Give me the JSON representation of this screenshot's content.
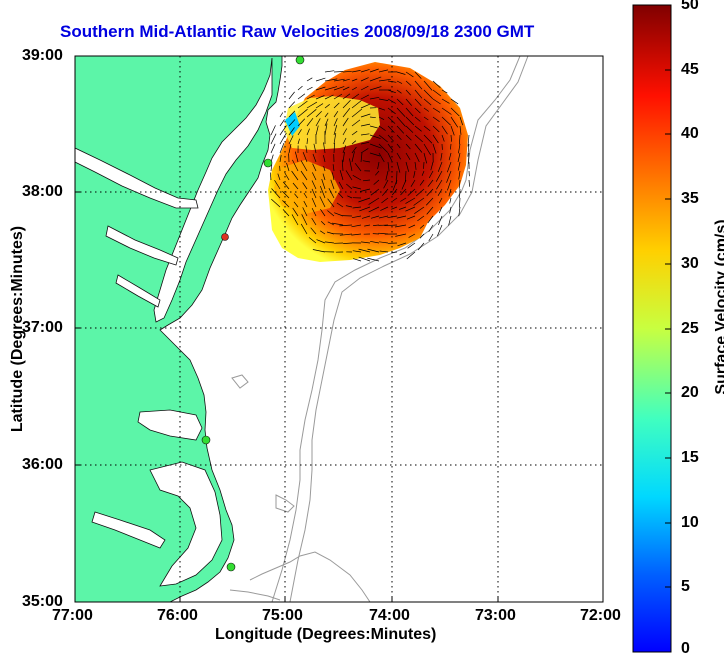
{
  "map": {
    "title": "Southern Mid-Atlantic Raw Velocities 2008/09/18 2300 GMT",
    "x_axis_label": "Longitude (Degrees:Minutes)",
    "y_axis_label": "Latitude (Degrees:Minutes)",
    "x_ticks": [
      "77:00",
      "76:00",
      "75:00",
      "74:00",
      "73:00",
      "72:00"
    ],
    "y_ticks": [
      "39:00",
      "38:00",
      "37:00",
      "36:00",
      "35:00"
    ],
    "grid": "dotted",
    "land_color": "#5cf5a8",
    "contour_color": "#9a9a9a",
    "station_color": "#33dd33",
    "station_alt_color": "#dd3322"
  },
  "colorbar": {
    "label": "Surface Velocity (cm/s)",
    "ticks": [
      "0",
      "5",
      "10",
      "15",
      "20",
      "25",
      "30",
      "35",
      "40",
      "45",
      "50"
    ],
    "range": [
      0,
      50
    ],
    "colormap": "jet"
  }
}
